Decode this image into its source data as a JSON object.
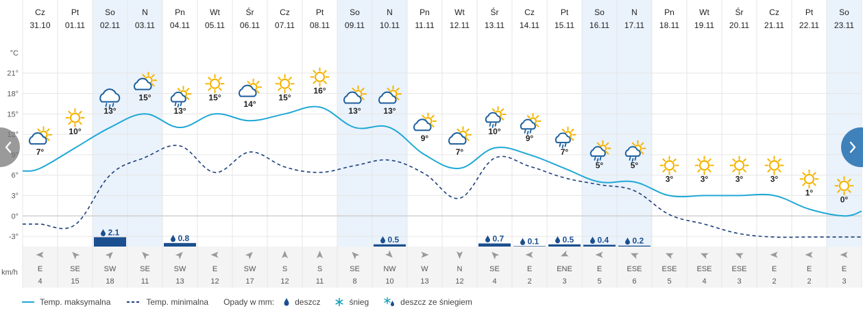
{
  "chart_data": {
    "type": "line",
    "title": "",
    "y_unit": "°C",
    "wind_unit": "km/h",
    "ylim": [
      -4.5,
      25.5
    ],
    "yticks": [
      -3,
      0,
      3,
      6,
      9,
      12,
      15,
      18,
      21
    ],
    "ytick_labels": [
      "-3°",
      "0°",
      "3°",
      "6°",
      "9°",
      "12°",
      "15°",
      "18°",
      "21°"
    ],
    "days": [
      {
        "dow": "Cz",
        "date": "31.10",
        "tmax": 7,
        "tmin": -1.2,
        "icon": "sun-cloud-icon",
        "weekend": false,
        "precip": null,
        "precip_label": null,
        "wind_dir": "E",
        "wind_speed": 4
      },
      {
        "dow": "Pt",
        "date": "01.11",
        "tmax": 10,
        "tmin": -1.3,
        "icon": "sun-icon",
        "weekend": false,
        "precip": null,
        "precip_label": null,
        "wind_dir": "SE",
        "wind_speed": 15
      },
      {
        "dow": "So",
        "date": "02.11",
        "tmax": 13,
        "tmin": 6,
        "icon": "cloud-rain-icon",
        "weekend": true,
        "precip": 2.1,
        "precip_label": "2.1",
        "wind_dir": "SW",
        "wind_speed": 18
      },
      {
        "dow": "N",
        "date": "03.11",
        "tmax": 15,
        "tmin": 8.6,
        "icon": "sun-cloud-icon",
        "weekend": true,
        "precip": null,
        "precip_label": null,
        "wind_dir": "SE",
        "wind_speed": 11
      },
      {
        "dow": "Pn",
        "date": "04.11",
        "tmax": 13,
        "tmin": 10.3,
        "icon": "sun-cloud-rain-icon",
        "weekend": false,
        "precip": 0.8,
        "precip_label": "0.8",
        "wind_dir": "SW",
        "wind_speed": 13
      },
      {
        "dow": "Wt",
        "date": "05.11",
        "tmax": 15,
        "tmin": 6.4,
        "icon": "sun-icon",
        "weekend": false,
        "precip": null,
        "precip_label": null,
        "wind_dir": "E",
        "wind_speed": 12
      },
      {
        "dow": "Śr",
        "date": "06.11",
        "tmax": 14,
        "tmin": 9.4,
        "icon": "sun-cloud-icon",
        "weekend": false,
        "precip": null,
        "precip_label": null,
        "wind_dir": "SW",
        "wind_speed": 17
      },
      {
        "dow": "Cz",
        "date": "07.11",
        "tmax": 15,
        "tmin": 7.2,
        "icon": "sun-icon",
        "weekend": false,
        "precip": null,
        "precip_label": null,
        "wind_dir": "S",
        "wind_speed": 12
      },
      {
        "dow": "Pt",
        "date": "08.11",
        "tmax": 16,
        "tmin": 6.4,
        "icon": "sun-icon",
        "weekend": false,
        "precip": null,
        "precip_label": null,
        "wind_dir": "S",
        "wind_speed": 11
      },
      {
        "dow": "So",
        "date": "09.11",
        "tmax": 13,
        "tmin": 7.4,
        "icon": "sun-cloud-icon",
        "weekend": true,
        "precip": null,
        "precip_label": null,
        "wind_dir": "SE",
        "wind_speed": 8
      },
      {
        "dow": "N",
        "date": "10.11",
        "tmax": 13,
        "tmin": 8.2,
        "icon": "sun-cloud-icon",
        "weekend": true,
        "precip": 0.5,
        "precip_label": "0.5",
        "wind_dir": "NW",
        "wind_speed": 10
      },
      {
        "dow": "Pn",
        "date": "11.11",
        "tmax": 9,
        "tmin": 6.2,
        "icon": "sun-cloud-icon",
        "weekend": false,
        "precip": null,
        "precip_label": null,
        "wind_dir": "W",
        "wind_speed": 13
      },
      {
        "dow": "Wt",
        "date": "12.11",
        "tmax": 7,
        "tmin": 2.6,
        "icon": "sun-cloud-icon",
        "weekend": false,
        "precip": null,
        "precip_label": null,
        "wind_dir": "N",
        "wind_speed": 12
      },
      {
        "dow": "Śr",
        "date": "13.11",
        "tmax": 10,
        "tmin": 8.5,
        "icon": "sun-cloud-rain-icon",
        "weekend": false,
        "precip": 0.7,
        "precip_label": "0.7",
        "wind_dir": "SE",
        "wind_speed": 4
      },
      {
        "dow": "Cz",
        "date": "14.11",
        "tmax": 9,
        "tmin": 7.3,
        "icon": "sun-cloud-rain-icon",
        "weekend": false,
        "precip": 0.1,
        "precip_label": "0.1",
        "wind_dir": "E",
        "wind_speed": 2
      },
      {
        "dow": "Pt",
        "date": "15.11",
        "tmax": 7,
        "tmin": 5.6,
        "icon": "sun-cloud-rain-icon",
        "weekend": false,
        "precip": 0.5,
        "precip_label": "0.5",
        "wind_dir": "ENE",
        "wind_speed": 3
      },
      {
        "dow": "So",
        "date": "16.11",
        "tmax": 5,
        "tmin": 4.6,
        "icon": "sun-cloud-rain-icon",
        "weekend": true,
        "precip": 0.4,
        "precip_label": "0.4",
        "wind_dir": "E",
        "wind_speed": 5
      },
      {
        "dow": "N",
        "date": "17.11",
        "tmax": 5,
        "tmin": 3.7,
        "icon": "sun-cloud-rain-icon",
        "weekend": true,
        "precip": 0.2,
        "precip_label": "0.2",
        "wind_dir": "ESE",
        "wind_speed": 6
      },
      {
        "dow": "Pn",
        "date": "18.11",
        "tmax": 3,
        "tmin": 0.2,
        "icon": "sun-icon",
        "weekend": false,
        "precip": null,
        "precip_label": null,
        "wind_dir": "ESE",
        "wind_speed": 5
      },
      {
        "dow": "Wt",
        "date": "19.11",
        "tmax": 3,
        "tmin": -1.2,
        "icon": "sun-icon",
        "weekend": false,
        "precip": null,
        "precip_label": null,
        "wind_dir": "ESE",
        "wind_speed": 4
      },
      {
        "dow": "Śr",
        "date": "20.11",
        "tmax": 3,
        "tmin": -2.6,
        "icon": "sun-icon",
        "weekend": false,
        "precip": null,
        "precip_label": null,
        "wind_dir": "ESE",
        "wind_speed": 3
      },
      {
        "dow": "Cz",
        "date": "21.11",
        "tmax": 3,
        "tmin": -3.1,
        "icon": "sun-icon",
        "weekend": false,
        "precip": null,
        "precip_label": null,
        "wind_dir": "E",
        "wind_speed": 2
      },
      {
        "dow": "Pt",
        "date": "22.11",
        "tmax": 1,
        "tmin": -3.1,
        "icon": "sun-icon",
        "weekend": false,
        "precip": null,
        "precip_label": null,
        "wind_dir": "E",
        "wind_speed": 2
      },
      {
        "dow": "So",
        "date": "23.11",
        "tmax": 0,
        "tmin": -3.1,
        "icon": "sun-icon",
        "weekend": true,
        "precip": null,
        "precip_label": null,
        "wind_dir": "E",
        "wind_speed": 3
      }
    ],
    "tmax_edges": [
      6.6,
      0.7
    ],
    "tmin_edges": [
      -1.2,
      -3.1
    ],
    "colors": {
      "tmax": "#1fa8d6",
      "tmin": "#1b3f7c",
      "precip": "#1b4f8f",
      "weekend": "#eaf2fb",
      "grid": "#e6e6e6",
      "zero": "#d0d0d0",
      "wind": "#f4f4f4",
      "sun": "#f5b400",
      "cloud": "#1b5e9c",
      "text": "#222"
    }
  },
  "legend": {
    "tmax": "Temp. maksymalna",
    "tmin": "Temp. minimalna",
    "precip_label": "Opady w mm:",
    "rain": "deszcz",
    "snow": "śnieg",
    "sleet": "deszcz ze śniegiem"
  },
  "nav": {
    "prev_icon": "chevron-left-icon",
    "next_icon": "chevron-right-icon"
  }
}
